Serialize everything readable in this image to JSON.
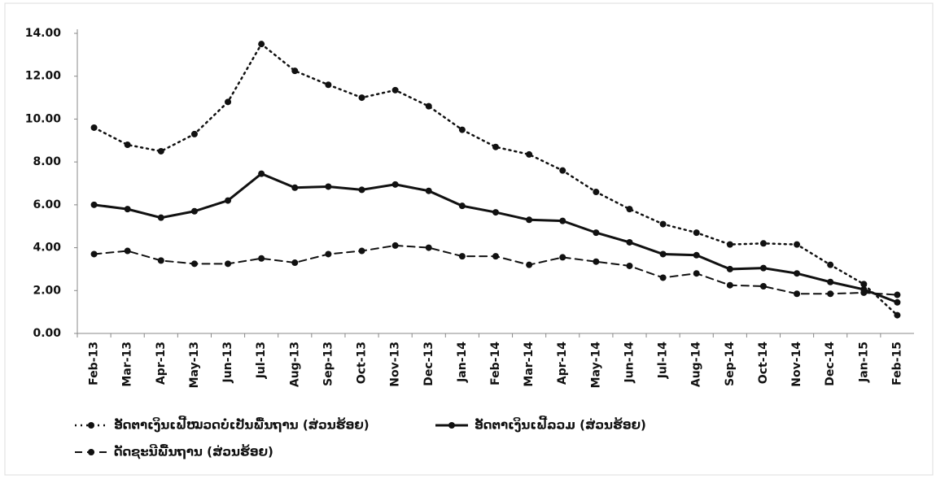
{
  "chart_data": {
    "type": "line",
    "categories": [
      "Feb-13",
      "Mar-13",
      "Apr-13",
      "May-13",
      "Jun-13",
      "Jul-13",
      "Aug-13",
      "Sep-13",
      "Oct-13",
      "Nov-13",
      "Dec-13",
      "Jan-14",
      "Feb-14",
      "Mar-14",
      "Apr-14",
      "May-14",
      "Jun-14",
      "Jul-14",
      "Aug-14",
      "Sep-14",
      "Oct-14",
      "Nov-14",
      "Dec-14",
      "Jan-15",
      "Feb-15"
    ],
    "series": [
      {
        "name": "ອັດຕາເງິນເຟີ້ໝວດບໍ່ເປັນພື້ນຖານ (ສ່ວນຮ້ອຍ)",
        "color": "#111111",
        "dash": "dotted",
        "values": [
          9.6,
          8.8,
          8.5,
          9.3,
          10.8,
          13.5,
          12.25,
          11.6,
          11.0,
          11.35,
          10.6,
          9.5,
          8.7,
          8.35,
          7.6,
          6.6,
          5.8,
          5.1,
          4.7,
          4.15,
          4.2,
          4.15,
          3.2,
          2.3,
          0.85
        ]
      },
      {
        "name": "ອັດຕາເງິນເຟີ້ລວມ (ສ່ວນຮ້ອຍ)",
        "color": "#111111",
        "dash": "solid",
        "values": [
          6.0,
          5.8,
          5.4,
          5.7,
          6.2,
          7.45,
          6.8,
          6.85,
          6.7,
          6.95,
          6.65,
          5.95,
          5.65,
          5.3,
          5.25,
          4.7,
          4.25,
          3.7,
          3.65,
          3.0,
          3.05,
          2.8,
          2.4,
          2.05,
          1.45
        ]
      },
      {
        "name": "ດັດຊະນີພື້ນຖານ (ສ່ວນຮ້ອຍ)",
        "color": "#111111",
        "dash": "dashed",
        "values": [
          3.7,
          3.85,
          3.4,
          3.25,
          3.25,
          3.5,
          3.3,
          3.7,
          3.85,
          4.1,
          4.0,
          3.6,
          3.6,
          3.2,
          3.55,
          3.35,
          3.15,
          2.6,
          2.8,
          2.25,
          2.2,
          1.85,
          1.85,
          1.9,
          1.8
        ]
      }
    ],
    "ylim": [
      0,
      14
    ],
    "yticks": [
      {
        "value": 0,
        "label": "0.00"
      },
      {
        "value": 2,
        "label": "2.00"
      },
      {
        "value": 4,
        "label": "4.00"
      },
      {
        "value": 6,
        "label": "6.00"
      },
      {
        "value": 8,
        "label": "8.00"
      },
      {
        "value": 10,
        "label": "10.00"
      },
      {
        "value": 12,
        "label": "12.00"
      },
      {
        "value": 14,
        "label": "14.00"
      }
    ]
  }
}
